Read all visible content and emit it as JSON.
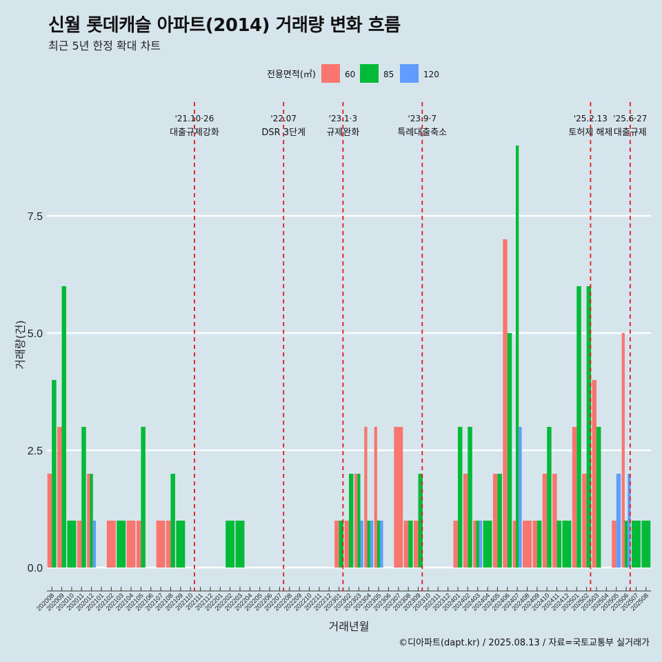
{
  "title": "신월 롯데캐슬 아파트(2014) 거래량 변화 흐름",
  "subtitle": "최근 5년 한정 확대 차트",
  "caption": "©디아파트(dapt.kr) / 2025.08.13 / 자료=국토교통부 실거래가",
  "colors": {
    "bg": "#d6e4ec",
    "s60": "#f8766d",
    "s85": "#00ba38",
    "s120": "#619cff",
    "vline": "#e8141c"
  },
  "chart_data": {
    "type": "bar",
    "title": "신월 롯데캐슬 아파트(2014) 거래량 변화 흐름",
    "subtitle": "최근 5년 한정 확대 차트",
    "xlabel": "거래년월",
    "ylabel": "거래량(건)",
    "ylim": [
      0,
      9
    ],
    "yticks": [
      "0.0",
      "2.5",
      "5.0",
      "7.5"
    ],
    "legend_title": "전용면적(㎡)",
    "legend_position": "top",
    "categories": [
      "202008",
      "202009",
      "202010",
      "202011",
      "202012",
      "202101",
      "202102",
      "202103",
      "202104",
      "202105",
      "202106",
      "202107",
      "202108",
      "202109",
      "202110",
      "202111",
      "202112",
      "202201",
      "202202",
      "202203",
      "202204",
      "202205",
      "202206",
      "202207",
      "202208",
      "202209",
      "202210",
      "202211",
      "202212",
      "202301",
      "202302",
      "202303",
      "202304",
      "202305",
      "202306",
      "202307",
      "202308",
      "202309",
      "202310",
      "202311",
      "202312",
      "202401",
      "202402",
      "202403",
      "202404",
      "202405",
      "202406",
      "202407",
      "202408",
      "202409",
      "202410",
      "202411",
      "202412",
      "202501",
      "202502",
      "202503",
      "202504",
      "202505",
      "202506",
      "202507",
      "202508"
    ],
    "series": [
      {
        "name": "60",
        "values": [
          2,
          3,
          0,
          1,
          2,
          0,
          1,
          0,
          1,
          1,
          0,
          1,
          1,
          0,
          0,
          0,
          0,
          0,
          0,
          0,
          0,
          0,
          0,
          0,
          0,
          0,
          0,
          0,
          0,
          1,
          1,
          2,
          3,
          3,
          0,
          3,
          1,
          1,
          0,
          0,
          0,
          1,
          2,
          1,
          0,
          2,
          7,
          1,
          1,
          1,
          2,
          2,
          0,
          3,
          2,
          4,
          0,
          1,
          5,
          0,
          0
        ]
      },
      {
        "name": "85",
        "values": [
          4,
          6,
          1,
          3,
          2,
          0,
          0,
          1,
          0,
          3,
          0,
          0,
          2,
          1,
          0,
          0,
          0,
          0,
          1,
          1,
          0,
          0,
          0,
          0,
          0,
          0,
          0,
          0,
          0,
          1,
          2,
          2,
          1,
          1,
          0,
          0,
          1,
          2,
          0,
          0,
          0,
          3,
          3,
          1,
          1,
          2,
          5,
          9,
          0,
          1,
          3,
          1,
          1,
          6,
          6,
          3,
          0,
          0,
          1,
          1,
          1
        ]
      },
      {
        "name": "120",
        "values": [
          0,
          0,
          0,
          0,
          1,
          0,
          0,
          0,
          0,
          0,
          0,
          0,
          0,
          0,
          0,
          0,
          0,
          0,
          0,
          0,
          0,
          0,
          0,
          0,
          0,
          0,
          0,
          0,
          0,
          0,
          0,
          1,
          1,
          1,
          0,
          0,
          0,
          0,
          0,
          0,
          0,
          0,
          0,
          1,
          0,
          0,
          0,
          3,
          0,
          0,
          0,
          0,
          0,
          0,
          0,
          0,
          0,
          2,
          2,
          0,
          0
        ]
      }
    ],
    "events": [
      {
        "date": "'21.10·26",
        "label": "대출규제강화",
        "at": "202110"
      },
      {
        "date": "'22.07",
        "label": "DSR 3단계",
        "at": "202207"
      },
      {
        "date": "'23.1·3",
        "label": "규제완화",
        "at": "202301"
      },
      {
        "date": "'23.9·7",
        "label": "특례대출축소",
        "at": "202309"
      },
      {
        "date": "'25.2.13",
        "label": "토허제 해제",
        "at": "202502"
      },
      {
        "date": "'25.6·27",
        "label": "대출규제",
        "at": "202506"
      }
    ]
  }
}
